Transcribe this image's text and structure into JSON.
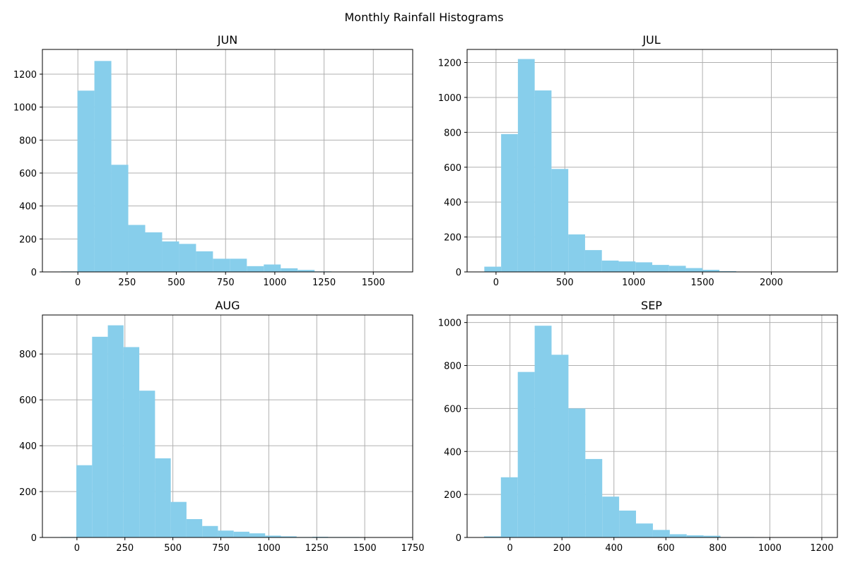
{
  "figure": {
    "title": "Monthly Rainfall Histograms",
    "bar_color": "#87CEEB",
    "grid_color": "#b0b0b0"
  },
  "chart_data": [
    {
      "type": "bar",
      "histogram": true,
      "title": "JUN",
      "xlabel": "",
      "ylabel": "",
      "bin_edges": [
        -85,
        -2,
        84,
        170,
        256,
        342,
        428,
        514,
        600,
        686,
        772,
        858,
        944,
        1030,
        1116,
        1202,
        1288,
        1374,
        1460,
        1546,
        1632
      ],
      "values": [
        3,
        1100,
        1280,
        650,
        285,
        240,
        185,
        170,
        125,
        80,
        80,
        35,
        45,
        22,
        12,
        3,
        2,
        1,
        1,
        1
      ],
      "xlim": [
        -180,
        1700
      ],
      "ylim": [
        0,
        1350
      ],
      "xticks": [
        0,
        250,
        500,
        750,
        1000,
        1250,
        1500
      ],
      "yticks": [
        0,
        200,
        400,
        600,
        800,
        1000,
        1200
      ],
      "grid": true
    },
    {
      "type": "bar",
      "histogram": true,
      "title": "JUL",
      "xlabel": "",
      "ylabel": "",
      "bin_edges": [
        -85,
        37,
        159,
        281,
        403,
        525,
        647,
        769,
        891,
        1013,
        1135,
        1257,
        1379,
        1501,
        1623,
        1745,
        1867,
        1989,
        2111,
        2233,
        2355
      ],
      "values": [
        30,
        790,
        1220,
        1040,
        590,
        215,
        125,
        65,
        60,
        55,
        40,
        35,
        22,
        12,
        4,
        2,
        1,
        1,
        1,
        1
      ],
      "xlim": [
        -210,
        2480
      ],
      "ylim": [
        0,
        1275
      ],
      "xticks": [
        0,
        500,
        1000,
        1500,
        2000
      ],
      "yticks": [
        0,
        200,
        400,
        600,
        800,
        1000,
        1200
      ],
      "grid": true
    },
    {
      "type": "bar",
      "histogram": true,
      "title": "AUG",
      "xlabel": "",
      "ylabel": "",
      "bin_edges": [
        -85,
        -3,
        79,
        161,
        243,
        325,
        407,
        489,
        571,
        653,
        735,
        817,
        899,
        981,
        1063,
        1145,
        1227,
        1309,
        1391,
        1473,
        1555
      ],
      "values": [
        2,
        315,
        875,
        925,
        830,
        640,
        345,
        155,
        80,
        50,
        30,
        25,
        18,
        8,
        5,
        2,
        3,
        2,
        2,
        1
      ],
      "xlim": [
        -180,
        1750
      ],
      "ylim": [
        0,
        970
      ],
      "xticks": [
        0,
        250,
        500,
        750,
        1000,
        1250,
        1500,
        1750
      ],
      "yticks": [
        0,
        200,
        400,
        600,
        800
      ],
      "grid": true
    },
    {
      "type": "bar",
      "histogram": true,
      "title": "SEP",
      "xlabel": "",
      "ylabel": "",
      "bin_edges": [
        -100,
        -35,
        30,
        95,
        160,
        225,
        290,
        355,
        420,
        485,
        550,
        615,
        680,
        745,
        810,
        875,
        940,
        1005,
        1070,
        1135,
        1200
      ],
      "values": [
        5,
        280,
        770,
        985,
        850,
        600,
        365,
        190,
        125,
        65,
        35,
        15,
        10,
        8,
        2,
        2,
        1,
        1,
        1,
        1
      ],
      "xlim": [
        -165,
        1260
      ],
      "ylim": [
        0,
        1035
      ],
      "xticks": [
        0,
        200,
        400,
        600,
        800,
        1000,
        1200
      ],
      "yticks": [
        0,
        200,
        400,
        600,
        800,
        1000
      ],
      "grid": true
    }
  ]
}
